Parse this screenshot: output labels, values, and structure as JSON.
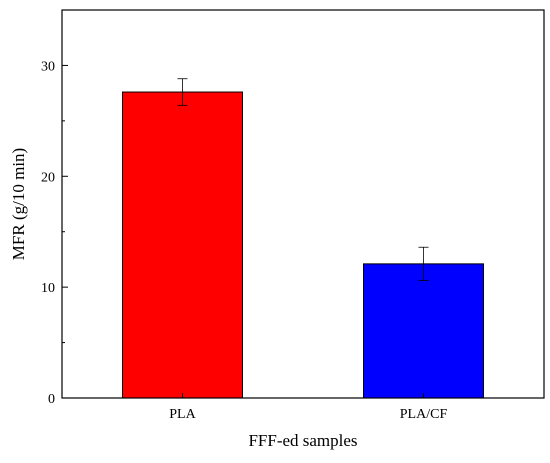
{
  "chart_data": {
    "type": "bar",
    "categories": [
      "PLA",
      "PLA/CF"
    ],
    "values": [
      27.6,
      12.1
    ],
    "errors": [
      1.2,
      1.5
    ],
    "colors": [
      "#ff0000",
      "#0000ff"
    ],
    "xlabel": "FFF-ed samples",
    "ylabel": "MFR (g/10 min)",
    "ylim": [
      0,
      35
    ],
    "yticks": [
      0,
      10,
      20,
      30
    ],
    "grid": false,
    "legend": "none"
  }
}
